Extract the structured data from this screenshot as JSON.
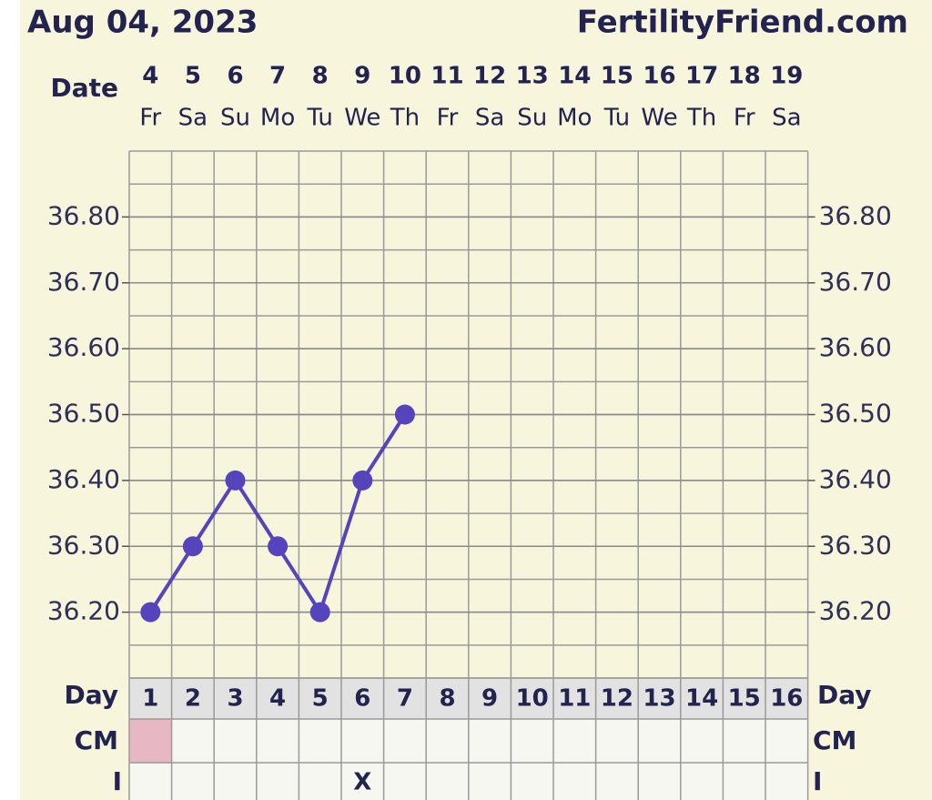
{
  "chart_data": {
    "type": "line",
    "title": "Aug 04, 2023",
    "site": "FertilityFriend.com",
    "date_label": "Date",
    "dates": [
      "4",
      "5",
      "6",
      "7",
      "8",
      "9",
      "10",
      "11",
      "12",
      "13",
      "14",
      "15",
      "16",
      "17",
      "18",
      "19"
    ],
    "weekdays": [
      "Fr",
      "Sa",
      "Su",
      "Mo",
      "Tu",
      "We",
      "Th",
      "Fr",
      "Sa",
      "Su",
      "Mo",
      "Tu",
      "We",
      "Th",
      "Fr",
      "Sa"
    ],
    "day_label": "Day",
    "days": [
      1,
      2,
      3,
      4,
      5,
      6,
      7,
      8,
      9,
      10,
      11,
      12,
      13,
      14,
      15,
      16
    ],
    "values": [
      36.2,
      36.3,
      36.4,
      36.3,
      36.2,
      36.4,
      36.5,
      null,
      null,
      null,
      null,
      null,
      null,
      null,
      null,
      null
    ],
    "color": "#5544bb",
    "ylim": [
      36.1,
      36.9
    ],
    "yticks": [
      {
        "value": 36.2,
        "label": "36.20"
      },
      {
        "value": 36.3,
        "label": "36.30"
      },
      {
        "value": 36.4,
        "label": "36.40"
      },
      {
        "value": 36.5,
        "label": "36.50"
      },
      {
        "value": 36.6,
        "label": "36.60"
      },
      {
        "value": 36.7,
        "label": "36.70"
      },
      {
        "value": 36.8,
        "label": "36.80"
      }
    ],
    "grid": true,
    "cm": {
      "label": "CM",
      "colors": [
        "#e8b7c4",
        null,
        null,
        null,
        null,
        null,
        null,
        null,
        null,
        null,
        null,
        null,
        null,
        null,
        null,
        null
      ]
    },
    "intercourse": {
      "label": "I",
      "marks": [
        null,
        null,
        null,
        null,
        null,
        "X",
        null,
        null,
        null,
        null,
        null,
        null,
        null,
        null,
        null,
        null
      ]
    }
  }
}
